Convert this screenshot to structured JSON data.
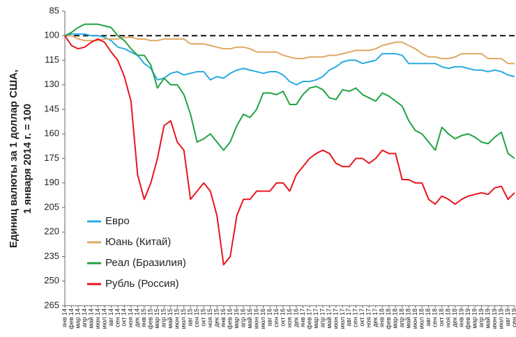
{
  "chart_data": {
    "type": "line",
    "ylabel": [
      "Единиц валюты за 1 доллар США,",
      "1 января 2014 г. = 100"
    ],
    "categories": [
      "янв 14",
      "фев 14",
      "мар 14",
      "апр 14",
      "май 14",
      "июн 14",
      "июл 14",
      "авг 14",
      "сен 14",
      "окт 14",
      "ноя 14",
      "дек 14",
      "янв 15",
      "фев 15",
      "мар 15",
      "апр 15",
      "май 15",
      "июн 15",
      "июл 15",
      "авг 15",
      "сен 15",
      "окт 15",
      "ноя 15",
      "дек 15",
      "янв 16",
      "фев 16",
      "мар 16",
      "апр 16",
      "май 16",
      "июн 16",
      "июл 16",
      "авг 16",
      "сен 16",
      "окт 16",
      "ноя 16",
      "дек 16",
      "янв 17",
      "фев 17",
      "мар 17",
      "апр 17",
      "май 17",
      "июн 17",
      "июл 17",
      "авг 17",
      "сен 17",
      "окт 17",
      "ноя 17",
      "дек 17",
      "янв 18",
      "фев 18",
      "мар 18",
      "апр 18",
      "май 18",
      "июн 18",
      "июл 18",
      "авг 18",
      "сен 18",
      "окт 18",
      "ноя 18",
      "дек 18",
      "янв 19",
      "фев 19",
      "мар 19",
      "апр 19",
      "май 19",
      "июн 19",
      "июл 19",
      "авг 19",
      "сен 19"
    ],
    "series": [
      {
        "name": "Евро",
        "color": "#29abe2",
        "values": [
          100,
          99,
          99,
          99,
          100,
          100,
          101,
          103,
          107,
          108,
          110,
          112,
          117,
          120,
          127,
          126,
          123,
          122,
          124,
          123,
          122,
          122,
          127,
          125,
          126,
          123,
          121,
          120,
          121,
          122,
          123,
          122,
          122,
          124,
          128,
          130,
          128,
          128,
          127,
          125,
          121,
          119,
          116,
          115,
          115,
          117,
          116,
          115,
          111,
          111,
          111,
          112,
          117,
          117,
          117,
          117,
          117,
          119,
          120,
          119,
          119,
          120,
          121,
          121,
          122,
          121,
          122,
          124,
          125
        ]
      },
      {
        "name": "Юань (Китай)",
        "color": "#e0a865",
        "values": [
          100,
          100,
          102,
          103,
          103,
          103,
          102,
          102,
          102,
          101,
          101,
          102,
          102,
          103,
          103,
          102,
          102,
          102,
          102,
          105,
          105,
          105,
          106,
          107,
          108,
          108,
          107,
          107,
          108,
          110,
          110,
          110,
          110,
          112,
          113,
          114,
          114,
          113,
          113,
          113,
          112,
          112,
          111,
          110,
          109,
          109,
          109,
          108,
          106,
          105,
          104,
          104,
          106,
          108,
          111,
          113,
          113,
          114,
          114,
          113,
          111,
          111,
          111,
          111,
          114,
          114,
          114,
          117,
          117
        ]
      },
      {
        "name": "Реал (Бразилия)",
        "color": "#21a343",
        "values": [
          100,
          98,
          95,
          93,
          93,
          93,
          94,
          95,
          100,
          103,
          108,
          112,
          112,
          118,
          132,
          126,
          130,
          130,
          136,
          148,
          165,
          163,
          160,
          165,
          170,
          165,
          155,
          148,
          150,
          145,
          135,
          135,
          136,
          134,
          142,
          142,
          136,
          132,
          131,
          133,
          138,
          139,
          133,
          134,
          132,
          136,
          138,
          140,
          135,
          137,
          140,
          143,
          152,
          158,
          160,
          165,
          170,
          156,
          160,
          163,
          161,
          160,
          162,
          165,
          166,
          162,
          159,
          172,
          175
        ]
      },
      {
        "name": "Рубль (Россия)",
        "color": "#e8141c",
        "values": [
          100,
          106,
          108,
          107,
          104,
          102,
          104,
          110,
          115,
          125,
          140,
          185,
          200,
          190,
          175,
          155,
          152,
          165,
          170,
          200,
          195,
          190,
          195,
          210,
          240,
          235,
          210,
          200,
          200,
          195,
          195,
          195,
          190,
          190,
          195,
          185,
          180,
          175,
          172,
          170,
          172,
          178,
          180,
          180,
          175,
          175,
          178,
          175,
          170,
          172,
          172,
          188,
          188,
          190,
          190,
          200,
          203,
          198,
          200,
          203,
          200,
          198,
          197,
          196,
          197,
          193,
          192,
          200,
          196
        ]
      }
    ],
    "ylim": [
      85,
      265
    ],
    "yticks": [
      85,
      100,
      115,
      130,
      145,
      160,
      175,
      190,
      205,
      220,
      235,
      250,
      265
    ],
    "inverted": true,
    "reference_line": 100,
    "grid": false,
    "legend": "lower left"
  }
}
